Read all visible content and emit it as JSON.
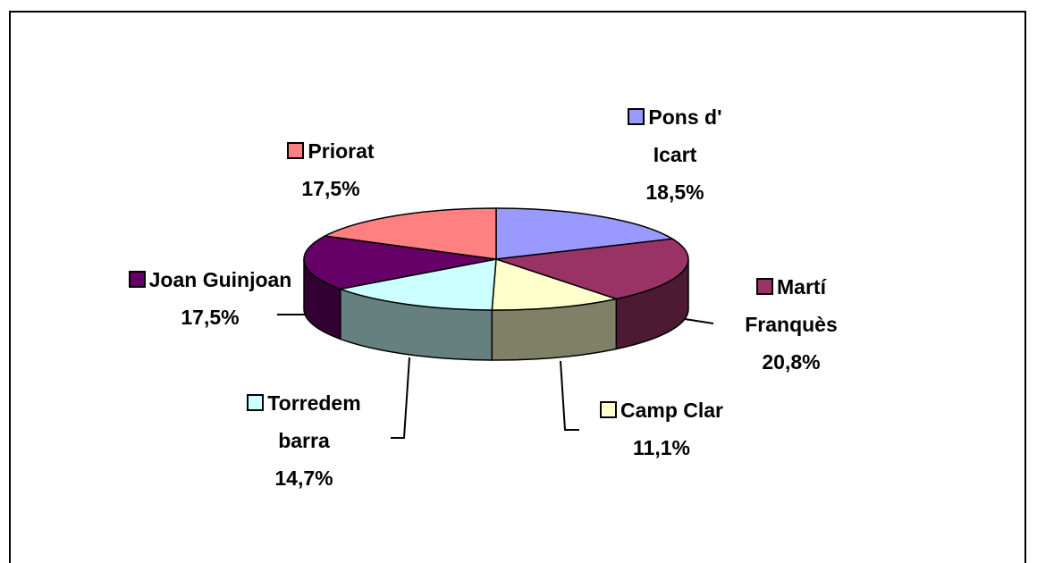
{
  "chart_data": {
    "type": "pie3d",
    "categories": [
      "Pons d' Icart",
      "Martí Franquès",
      "Camp Clar",
      "Torredem barra",
      "Joan Guinjoan",
      "Priorat"
    ],
    "values": [
      18.5,
      20.8,
      11.1,
      14.7,
      17.5,
      17.5
    ],
    "value_labels": [
      "18,5%",
      "20,8%",
      "11,1%",
      "14,7%",
      "17,5%",
      "17,5%"
    ],
    "colors": [
      "#9999ff",
      "#993366",
      "#ffffcc",
      "#ccffff",
      "#660066",
      "#ff8080"
    ]
  }
}
